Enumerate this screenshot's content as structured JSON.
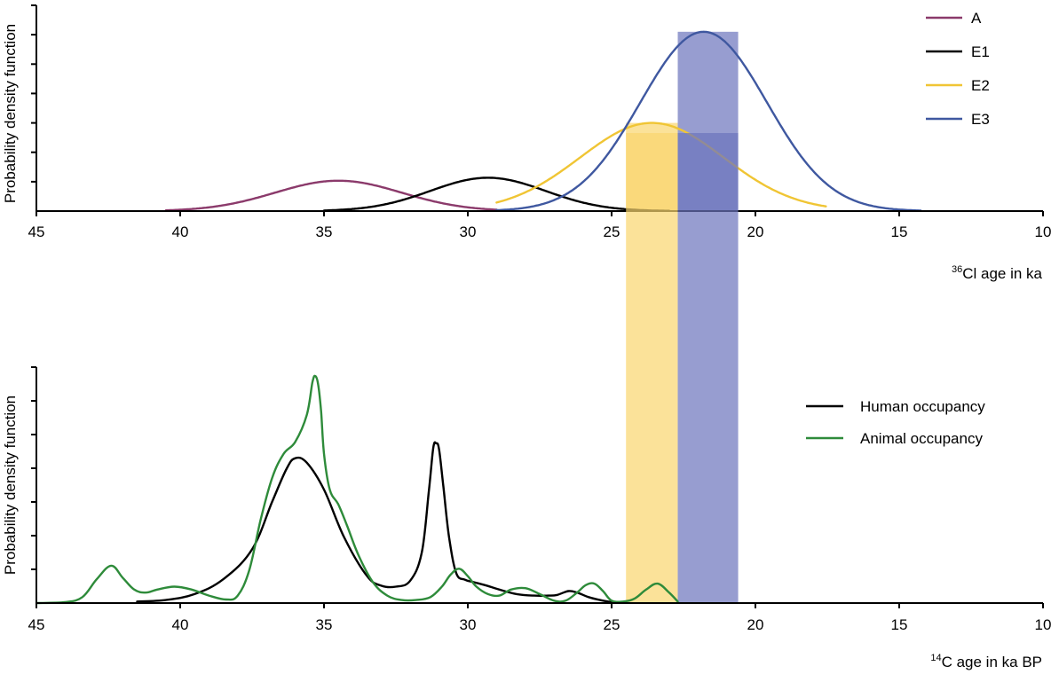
{
  "chart_data": [
    {
      "type": "area",
      "xlabel": "Cl age in ka",
      "xlabel_superscript": "36",
      "ylabel": "Probability density function",
      "xlim": [
        45,
        10
      ],
      "x_reversed": true,
      "x_ticks": [
        "45",
        "40",
        "35",
        "30",
        "25",
        "20",
        "15",
        "10"
      ],
      "legend_position": "top-right",
      "series": [
        {
          "name": "A",
          "color": "#8B3A6B",
          "mean": 34.5,
          "sd": 2.2,
          "amplitude": 0.31,
          "range": [
            40.5,
            29.0
          ]
        },
        {
          "name": "E1",
          "color": "#000000",
          "mean": 29.3,
          "sd": 2.0,
          "amplitude": 0.34,
          "range": [
            35.0,
            23.0
          ]
        },
        {
          "name": "E2",
          "color": "#F0C534",
          "mean": 23.6,
          "sd": 2.5,
          "amplitude": 0.9,
          "range": [
            29.0,
            17.5
          ]
        },
        {
          "name": "E3",
          "color": "#3F58A0",
          "mean": 21.8,
          "sd": 2.2,
          "amplitude": 1.83,
          "range": [
            29.0,
            14.2
          ]
        }
      ],
      "bands": [
        {
          "x_from": 24.5,
          "x_to": 22.7,
          "color": "#F9D66E",
          "opacity": 0.7
        },
        {
          "x_from": 22.7,
          "x_to": 20.6,
          "color": "#6B74BC",
          "opacity": 0.7
        }
      ],
      "grid": false
    },
    {
      "type": "line",
      "xlabel": "C age in ka BP",
      "xlabel_superscript": "14",
      "ylabel": "Probability density function",
      "xlim": [
        45,
        10
      ],
      "x_reversed": true,
      "x_ticks": [
        "45",
        "40",
        "35",
        "30",
        "25",
        "20",
        "15",
        "10"
      ],
      "legend_position": "right",
      "series": [
        {
          "name": "Human occupancy",
          "color": "#000000",
          "x": [
            41.5,
            40.5,
            39.5,
            38.5,
            37.5,
            36.8,
            36.3,
            36.0,
            35.6,
            35.0,
            34.3,
            33.5,
            33.0,
            32.5,
            32.0,
            31.6,
            31.35,
            31.2,
            31.1,
            31.0,
            30.85,
            30.65,
            30.4,
            30.1,
            29.8,
            29.4,
            28.9,
            28.3,
            27.7,
            27.2,
            26.9,
            26.5,
            26.2,
            25.8,
            25.4,
            25.0
          ],
          "y": [
            0.05,
            0.1,
            0.3,
            0.8,
            1.8,
            3.4,
            4.5,
            4.85,
            4.7,
            3.8,
            2.2,
            0.9,
            0.58,
            0.55,
            0.75,
            1.7,
            3.8,
            5.2,
            5.35,
            5.15,
            3.9,
            2.2,
            1.0,
            0.78,
            0.7,
            0.6,
            0.45,
            0.3,
            0.25,
            0.25,
            0.27,
            0.4,
            0.35,
            0.2,
            0.1,
            0.03
          ]
        },
        {
          "name": "Animal occupancy",
          "color": "#2E8B3A",
          "x": [
            45.0,
            44.0,
            43.4,
            42.9,
            42.4,
            42.0,
            41.6,
            41.2,
            40.8,
            40.2,
            39.6,
            39.0,
            38.4,
            38.0,
            37.6,
            37.2,
            36.8,
            36.4,
            36.0,
            35.6,
            35.4,
            35.3,
            35.2,
            35.1,
            35.0,
            34.8,
            34.5,
            34.2,
            33.8,
            33.3,
            32.8,
            32.3,
            31.8,
            31.3,
            30.9,
            30.6,
            30.3,
            30.0,
            29.7,
            29.3,
            28.9,
            28.5,
            28.0,
            27.5,
            27.0,
            26.6,
            26.2,
            25.9,
            25.6,
            25.3,
            25.0,
            24.6,
            24.2,
            23.8,
            23.4,
            23.0,
            22.7
          ],
          "y": [
            0.0,
            0.03,
            0.2,
            0.8,
            1.25,
            0.85,
            0.45,
            0.35,
            0.45,
            0.55,
            0.45,
            0.25,
            0.12,
            0.25,
            1.1,
            2.8,
            4.2,
            5.0,
            5.4,
            6.3,
            7.4,
            7.6,
            7.3,
            6.4,
            5.0,
            3.8,
            3.3,
            2.6,
            1.6,
            0.7,
            0.25,
            0.1,
            0.1,
            0.2,
            0.55,
            0.95,
            1.15,
            0.9,
            0.55,
            0.3,
            0.25,
            0.45,
            0.5,
            0.3,
            0.08,
            0.08,
            0.35,
            0.6,
            0.65,
            0.4,
            0.08,
            0.05,
            0.15,
            0.45,
            0.65,
            0.35,
            0.05
          ]
        }
      ],
      "bands": [
        {
          "x_from": 24.5,
          "x_to": 22.7,
          "color": "#F9D66E",
          "opacity": 0.7
        },
        {
          "x_from": 22.7,
          "x_to": 20.6,
          "color": "#6B74BC",
          "opacity": 0.7
        }
      ],
      "grid": false
    }
  ]
}
